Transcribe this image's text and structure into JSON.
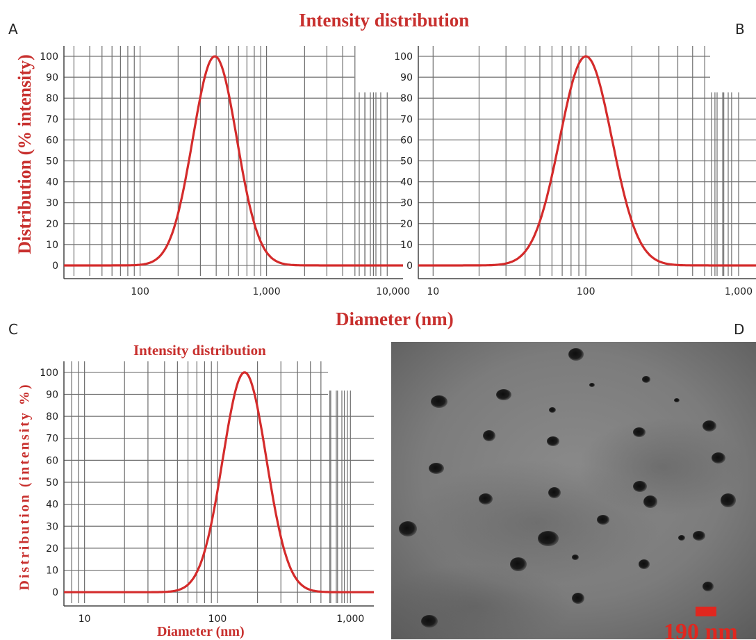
{
  "panel_letters": {
    "a": "A",
    "b": "B",
    "c": "C",
    "d": "D"
  },
  "shared": {
    "top_title": "Intensity distribution",
    "top_ylabel": "Distribution (% intensity)",
    "top_xlabel": "Diameter (nm)"
  },
  "colors": {
    "curve": "#d42b2b",
    "label": "#c8302e",
    "grid": "#6e6e6e"
  },
  "chart_data": [
    {
      "panel": "A",
      "type": "line",
      "xscale": "log",
      "xlim": [
        25,
        12000
      ],
      "ylim": [
        -5,
        105
      ],
      "x_ticks": [
        100,
        1000,
        10000
      ],
      "x_tick_labels": [
        "100",
        "1,000",
        "10,000"
      ],
      "y_ticks": [
        0,
        10,
        20,
        30,
        40,
        50,
        60,
        70,
        80,
        90,
        100
      ],
      "grid_x": [
        30,
        40,
        50,
        60,
        70,
        80,
        90,
        100,
        200,
        300,
        400,
        500,
        600,
        700,
        800,
        900,
        1000,
        2000,
        3000,
        4000,
        5000,
        6000,
        7000,
        8000,
        9000
      ],
      "series": [
        {
          "peak_x": 390,
          "peak_y": 100,
          "baseline_y": 0,
          "range": [
            100,
            1200
          ]
        }
      ]
    },
    {
      "panel": "B",
      "type": "line",
      "xscale": "log",
      "xlim": [
        8,
        1300
      ],
      "ylim": [
        -5,
        105
      ],
      "x_ticks": [
        10,
        100,
        1000
      ],
      "x_tick_labels": [
        "10",
        "100",
        "1,000"
      ],
      "y_ticks": [
        0,
        10,
        20,
        30,
        40,
        50,
        60,
        70,
        80,
        90,
        100
      ],
      "grid_x": [
        10,
        20,
        30,
        40,
        50,
        60,
        70,
        80,
        90,
        100,
        200,
        300,
        400,
        500,
        600,
        700,
        800,
        900,
        1000
      ],
      "series": [
        {
          "peak_x": 100,
          "peak_y": 100,
          "baseline_y": 0,
          "range": [
            28,
            320
          ]
        }
      ]
    },
    {
      "panel": "C",
      "type": "line",
      "xscale": "log",
      "xlim": [
        7,
        1500
      ],
      "ylim": [
        -5,
        105
      ],
      "title": "Intensity distribution",
      "xlabel": "Diameter (nm)",
      "ylabel": "Distribution (intensity %)",
      "x_ticks": [
        10,
        100,
        1000
      ],
      "x_tick_labels": [
        "10",
        "100",
        "1,000"
      ],
      "y_ticks": [
        0,
        10,
        20,
        30,
        40,
        50,
        60,
        70,
        80,
        90,
        100
      ],
      "grid_x": [
        8,
        9,
        10,
        20,
        30,
        40,
        50,
        60,
        70,
        80,
        90,
        100,
        200,
        300,
        400,
        500,
        600,
        700,
        800,
        900,
        1000
      ],
      "series": [
        {
          "peak_x": 160,
          "peak_y": 100,
          "baseline_y": 0,
          "range": [
            50,
            520
          ]
        }
      ]
    }
  ],
  "tem_image": {
    "scale_bar_label": "190 nm"
  }
}
